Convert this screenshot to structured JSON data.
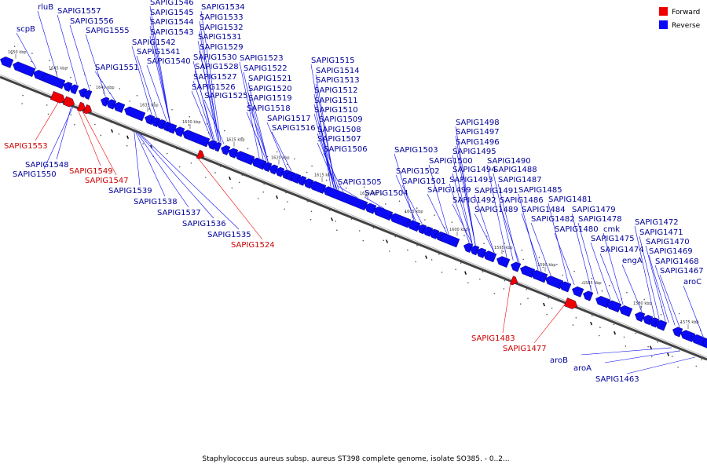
{
  "colors": {
    "forward": "#ee0000",
    "reverse": "#0a0af5",
    "forward_label": "#cc0000",
    "reverse_label": "#000099",
    "backbone": "#7a7a7a"
  },
  "legend": {
    "forward_label": "Forward",
    "reverse_label": "Reverse"
  },
  "caption": "Staphylococcus aureus subsp. aureus ST398 complete genome, isolate SO385. - 0..2...",
  "axis_ticks": [
    "1650 kbp",
    "1645 kbp",
    "1640 kbp",
    "1635 kbp",
    "1630 kbp",
    "1625 kbp",
    "1620 kbp",
    "1615 kbp",
    "1610 kbp",
    "1605 kbp",
    "1600 kbp",
    "1595 kbp",
    "1590 kbp",
    "1585 kbp",
    "1580 kbp",
    "1575 kbp"
  ],
  "genes_above": [
    "rluB",
    "scpB",
    "SAPIG1557",
    "SAPIG1556",
    "SAPIG1555",
    "SAPIG1551",
    "SAPIG1546",
    "SAPIG1545",
    "SAPIG1544",
    "SAPIG1543",
    "SAPIG1542",
    "SAPIG1541",
    "SAPIG1540",
    "SAPIG1534",
    "SAPIG1533",
    "SAPIG1532",
    "SAPIG1531",
    "SAPIG1529",
    "SAPIG1530",
    "SAPIG1528",
    "SAPIG1527",
    "SAPIG1526",
    "SAPIG1525",
    "SAPIG1523",
    "SAPIG1522",
    "SAPIG1521",
    "SAPIG1520",
    "SAPIG1519",
    "SAPIG1518",
    "SAPIG1517",
    "SAPIG1516",
    "SAPIG1515",
    "SAPIG1514",
    "SAPIG1513",
    "SAPIG1512",
    "SAPIG1511",
    "SAPIG1510",
    "SAPIG1509",
    "SAPIG1508",
    "SAPIG1507",
    "SAPIG1506",
    "SAPIG1505",
    "SAPIG1504",
    "SAPIG1503",
    "SAPIG1502",
    "SAPIG1501",
    "SAPIG1500",
    "SAPIG1499",
    "SAPIG1498",
    "SAPIG1497",
    "SAPIG1496",
    "SAPIG1495",
    "SAPIG1494",
    "SAPIG1493",
    "SAPIG1492",
    "SAPIG1491",
    "SAPIG1490",
    "SAPIG1489",
    "SAPIG1488",
    "SAPIG1487",
    "SAPIG1486",
    "SAPIG1485",
    "SAPIG1484",
    "SAPIG1482",
    "SAPIG1481",
    "SAPIG1480",
    "SAPIG1479",
    "SAPIG1478",
    "SAPIG1475",
    "SAPIG1474",
    "cmk",
    "engA",
    "SAPIG1472",
    "SAPIG1471",
    "SAPIG1470",
    "SAPIG1469",
    "SAPIG1468",
    "SAPIG1467",
    "aroC"
  ],
  "genes_below": [
    {
      "name": "SAPIG1553",
      "strand": "forward"
    },
    {
      "name": "SAPIG1548",
      "strand": "reverse"
    },
    {
      "name": "SAPIG1550",
      "strand": "reverse"
    },
    {
      "name": "SAPIG1549",
      "strand": "forward"
    },
    {
      "name": "SAPIG1547",
      "strand": "forward"
    },
    {
      "name": "SAPIG1539",
      "strand": "reverse"
    },
    {
      "name": "SAPIG1538",
      "strand": "reverse"
    },
    {
      "name": "SAPIG1537",
      "strand": "reverse"
    },
    {
      "name": "SAPIG1536",
      "strand": "reverse"
    },
    {
      "name": "SAPIG1535",
      "strand": "reverse"
    },
    {
      "name": "SAPIG1524",
      "strand": "forward"
    },
    {
      "name": "SAPIG1483",
      "strand": "forward"
    },
    {
      "name": "SAPIG1477",
      "strand": "forward"
    },
    {
      "name": "aroB",
      "strand": "reverse"
    },
    {
      "name": "aroA",
      "strand": "reverse"
    },
    {
      "name": "SAPIG1463",
      "strand": "reverse"
    }
  ]
}
